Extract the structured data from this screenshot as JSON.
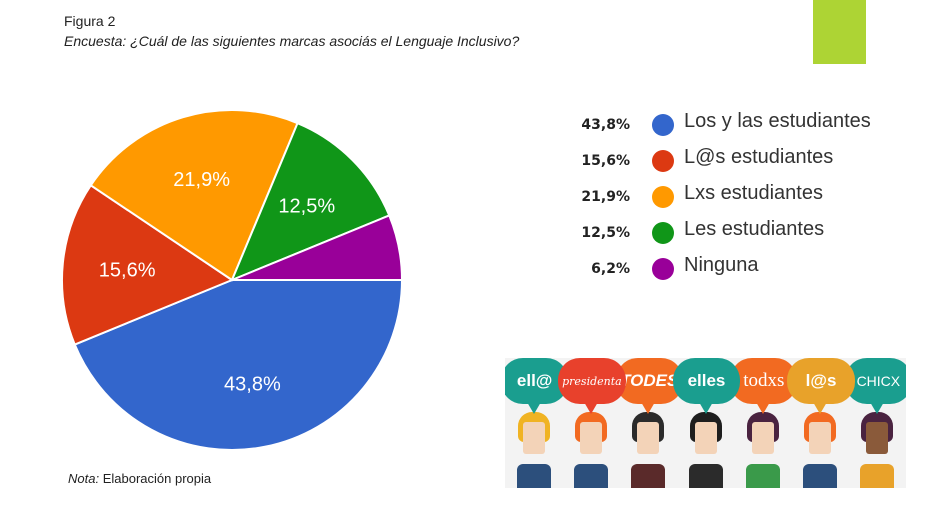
{
  "figure": {
    "label": "Figura 2",
    "caption": "Encuesta: ¿Cuál de las siguientes marcas asociás el Lenguaje Inclusivo?",
    "note_prefix": "Nota:",
    "note_text": " Elaboración propia",
    "accent_color": "#add434"
  },
  "chart_data": {
    "type": "pie",
    "title": "Encuesta: ¿Cuál de las siguientes marcas asociás el Lenguaje Inclusivo?",
    "categories": [
      "Los y las estudiantes",
      "L@s estudiantes",
      "Lxs estudiantes",
      "Les estudiantes",
      "Ninguna"
    ],
    "values": [
      43.8,
      15.6,
      21.9,
      12.5,
      6.2
    ],
    "value_labels": [
      "43,8%",
      "15,6%",
      "21,9%",
      "12,5%",
      "6,2%"
    ],
    "slice_labels_shown": [
      true,
      true,
      true,
      true,
      false
    ],
    "colors": [
      "#3366cc",
      "#dc3912",
      "#ff9900",
      "#109618",
      "#990099"
    ],
    "start": "3 o'clock, clockwise",
    "legend_placement": "right",
    "legend": [
      {
        "pct": "43,8%",
        "label": "Los y las estudiantes",
        "color": "#3366cc"
      },
      {
        "pct": "15,6%",
        "label": "L@s estudiantes",
        "color": "#dc3912"
      },
      {
        "pct": "21,9%",
        "label": "Lxs estudiantes",
        "color": "#ff9900"
      },
      {
        "pct": "12,5%",
        "label": "Les estudiantes",
        "color": "#109618"
      },
      {
        "pct": "6,2%",
        "label": "Ninguna",
        "color": "#990099"
      }
    ]
  },
  "illustration": {
    "bubbles": [
      {
        "text": "ell@",
        "color": "#1a9e8f"
      },
      {
        "text": "presidenta",
        "color": "#e8412c"
      },
      {
        "text": "TODES",
        "color": "#f26a21"
      },
      {
        "text": "elles",
        "color": "#1a9e8f"
      },
      {
        "text": "todxs",
        "color": "#f26a21"
      },
      {
        "text": "l@s",
        "color": "#e8a22a"
      },
      {
        "text": "CHICX",
        "color": "#1a9e8f"
      }
    ],
    "people": [
      {
        "hair": "#f0b323",
        "body": "#2c4f7c"
      },
      {
        "hair": "#f26a21",
        "body": "#2c4f7c"
      },
      {
        "hair": "#2b2b2b",
        "body": "#5a2a2a"
      },
      {
        "hair": "#1e1e1e",
        "body": "#2b2b2b"
      },
      {
        "hair": "#4a2340",
        "body": "#3a9a4a"
      },
      {
        "hair": "#f26a21",
        "body": "#2c4f7c"
      },
      {
        "hair": "#4a2340",
        "body": "#e8a22a"
      }
    ]
  }
}
